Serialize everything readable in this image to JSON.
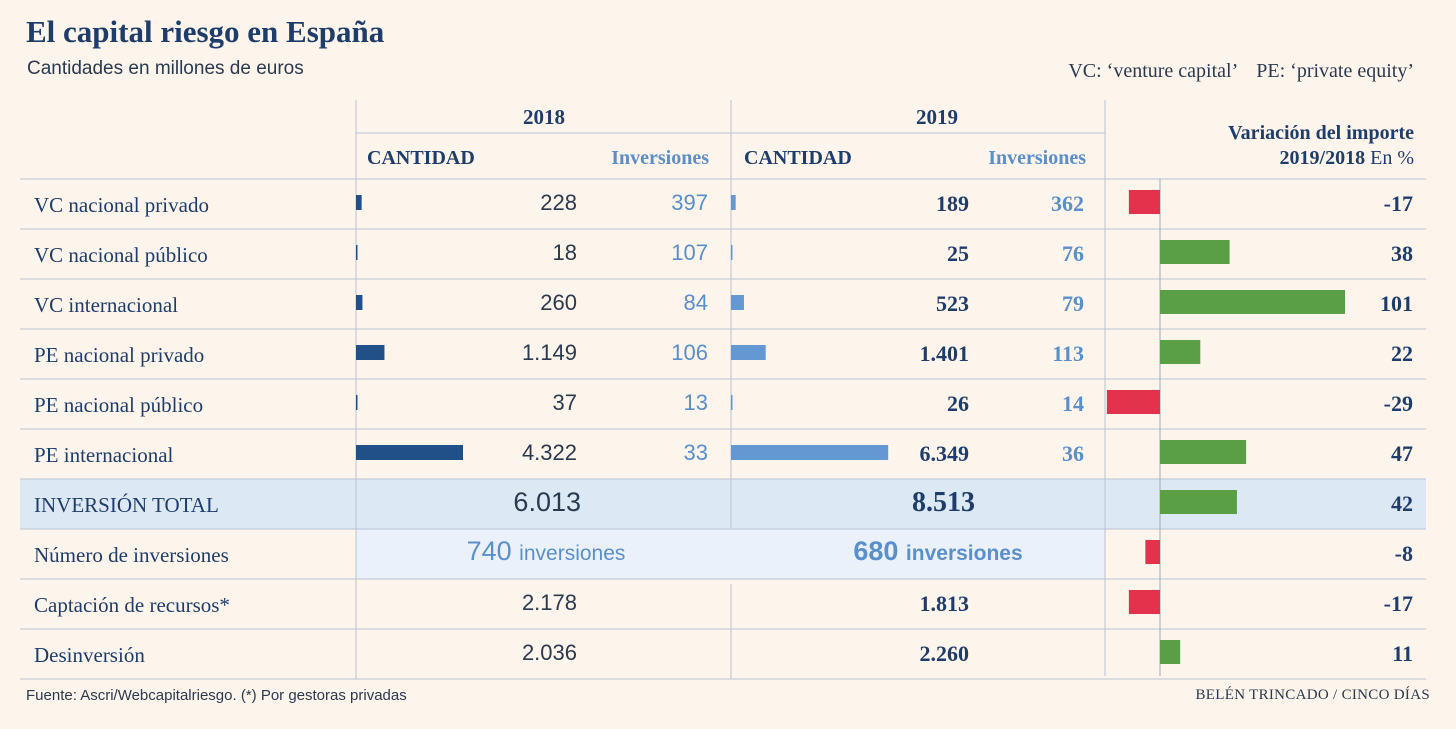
{
  "title": "El capital riesgo en España",
  "subtitle": "Cantidades en millones de euros",
  "notes": [
    "VC: ‘venture capital’",
    "PE: ‘private equity’"
  ],
  "footer": {
    "source": "Fuente: Ascri/Webcapitalriesgo. (*) Por gestoras privadas",
    "credit": "BELÉN TRINCADO / CINCO DÍAS"
  },
  "colors": {
    "bar2018": "#214f87",
    "bar2019": "#6398d2",
    "positive": "#5a9e46",
    "negative": "#e3324c",
    "highlight": "#dde8f5",
    "highlight_light": "#eaf1fa",
    "text_dark": "#1f3d6b",
    "text_light": "#5b8fcb"
  },
  "chart_data": {
    "type": "table",
    "headers": {
      "y2018": "2018",
      "y2019": "2019",
      "cantidad": "CANTIDAD",
      "inversiones": "Inversiones",
      "variacion_line1": "Variación del importe",
      "variacion_line2": "2019/2018",
      "variacion_unit": "En %"
    },
    "rows": [
      {
        "label": "VC nacional privado",
        "c2018": 228,
        "c2018_text": "228",
        "i2018": "397",
        "c2019": 189,
        "c2019_text": "189",
        "i2019": "362",
        "var": -17,
        "var_text": "-17"
      },
      {
        "label": "VC nacional público",
        "c2018": 18,
        "c2018_text": "18",
        "i2018": "107",
        "c2019": 25,
        "c2019_text": "25",
        "i2019": "76",
        "var": 38,
        "var_text": "38"
      },
      {
        "label": "VC internacional",
        "c2018": 260,
        "c2018_text": "260",
        "i2018": "84",
        "c2019": 523,
        "c2019_text": "523",
        "i2019": "79",
        "var": 101,
        "var_text": "101"
      },
      {
        "label": "PE nacional privado",
        "c2018": 1149,
        "c2018_text": "1.149",
        "i2018": "106",
        "c2019": 1401,
        "c2019_text": "1.401",
        "i2019": "113",
        "var": 22,
        "var_text": "22"
      },
      {
        "label": "PE nacional público",
        "c2018": 37,
        "c2018_text": "37",
        "i2018": "13",
        "c2019": 26,
        "c2019_text": "26",
        "i2019": "14",
        "var": -29,
        "var_text": "-29"
      },
      {
        "label": "PE internacional",
        "c2018": 4322,
        "c2018_text": "4.322",
        "i2018": "33",
        "c2019": 6349,
        "c2019_text": "6.349",
        "i2019": "36",
        "var": 47,
        "var_text": "47"
      }
    ],
    "total": {
      "label": "INVERSIÓN TOTAL",
      "v2018": "6.013",
      "v2019": "8.513",
      "var": 42,
      "var_text": "42"
    },
    "numero": {
      "label": "Número de inversiones",
      "v2018": "740",
      "v2019": "680",
      "unit": "inversiones",
      "var": -8,
      "var_text": "-8"
    },
    "extra": [
      {
        "label": "Captación de recursos*",
        "v2018": "2.178",
        "v2019": "1.813",
        "var": -17,
        "var_text": "-17"
      },
      {
        "label": "Desinversión",
        "v2018": "2.036",
        "v2019": "2.260",
        "var": 11,
        "var_text": "11"
      }
    ]
  }
}
